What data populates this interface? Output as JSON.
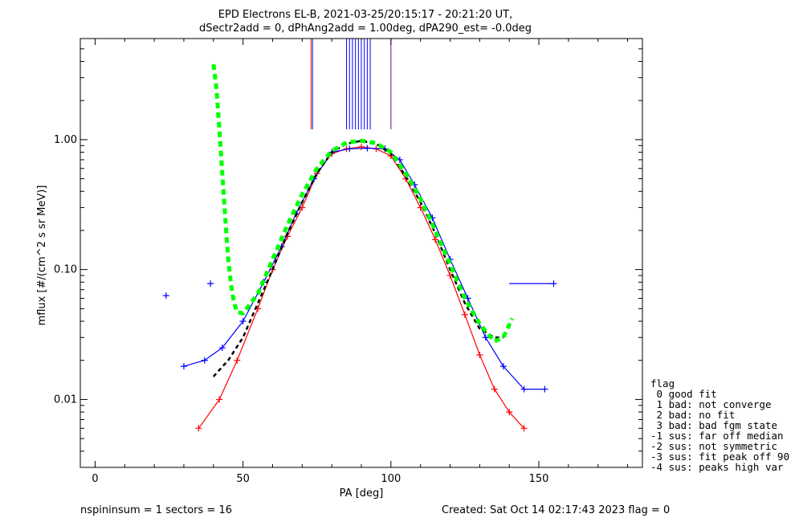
{
  "chart_data": {
    "type": "line",
    "title": "EPD Electrons EL-B, 2021-03-25/20:15:17 - 20:21:20 UT,",
    "subtitle": "dSectr2add = 0, dPhAng2add = 1.00deg, dPA290_est=  -0.0deg",
    "xlabel": "PA [deg]",
    "ylabel": "mflux [#/(cm^2 s sr MeV)]",
    "xlim": [
      -5,
      185
    ],
    "ylim": [
      0.003,
      6
    ],
    "yscale": "log",
    "x_ticks": [
      {
        "value": 0,
        "label": "0"
      },
      {
        "value": 50,
        "label": "50"
      },
      {
        "value": 100,
        "label": "100"
      },
      {
        "value": 150,
        "label": "150"
      }
    ],
    "y_ticks": [
      {
        "value": 0.01,
        "label": "0.01"
      },
      {
        "value": 0.1,
        "label": "0.10"
      },
      {
        "value": 1,
        "label": "1.00"
      }
    ],
    "series": [
      {
        "color": "#ff0000",
        "x": [
          35,
          42,
          48,
          55,
          60,
          65,
          70,
          75,
          80,
          85,
          90,
          95,
          100,
          105,
          110,
          115,
          120,
          125,
          130,
          135,
          140,
          145
        ],
        "values": [
          0.006,
          0.01,
          0.02,
          0.05,
          0.1,
          0.18,
          0.3,
          0.55,
          0.78,
          0.85,
          0.88,
          0.85,
          0.75,
          0.5,
          0.3,
          0.17,
          0.09,
          0.045,
          0.022,
          0.012,
          0.008,
          0.006
        ]
      },
      {
        "color": "#0000ff",
        "x": [
          30,
          37,
          43,
          50,
          57,
          63,
          68,
          74,
          80,
          86,
          92,
          98,
          103,
          108,
          114,
          120,
          126,
          132,
          138,
          145,
          152
        ],
        "values": [
          0.018,
          0.02,
          0.025,
          0.04,
          0.08,
          0.15,
          0.27,
          0.5,
          0.8,
          0.85,
          0.86,
          0.85,
          0.7,
          0.45,
          0.25,
          0.12,
          0.06,
          0.03,
          0.018,
          0.012,
          0.012
        ]
      },
      {
        "color": "#000000",
        "x": [
          40,
          45,
          50,
          55,
          60,
          65,
          70,
          75,
          80,
          85,
          90,
          95,
          100,
          105,
          110,
          115,
          120,
          125,
          130,
          135,
          138
        ],
        "values": [
          0.015,
          0.02,
          0.03,
          0.055,
          0.1,
          0.19,
          0.33,
          0.55,
          0.8,
          0.93,
          0.98,
          0.93,
          0.78,
          0.52,
          0.33,
          0.19,
          0.1,
          0.055,
          0.035,
          0.03,
          0.03
        ]
      },
      {
        "color": "#00ff00",
        "x": [
          40,
          41,
          42,
          43,
          44,
          45,
          46,
          47,
          48,
          50,
          55,
          60,
          65,
          70,
          75,
          80,
          85,
          90,
          95,
          100,
          105,
          110,
          115,
          120,
          125,
          130,
          135,
          138,
          141
        ],
        "values": [
          3.8,
          2.5,
          1.2,
          0.55,
          0.25,
          0.12,
          0.075,
          0.055,
          0.047,
          0.046,
          0.065,
          0.12,
          0.22,
          0.38,
          0.6,
          0.82,
          0.95,
          0.98,
          0.94,
          0.8,
          0.55,
          0.35,
          0.2,
          0.11,
          0.06,
          0.038,
          0.028,
          0.03,
          0.042
        ]
      }
    ],
    "outliers": [
      {
        "x": 24,
        "y": 0.063,
        "color": "#0000ff"
      },
      {
        "x": 39,
        "y": 0.078,
        "color": "#0000ff"
      },
      {
        "x": 155,
        "y": 0.078,
        "color": "#0000ff"
      }
    ],
    "vertical_lines": [
      {
        "x": 73,
        "color": "#ff0000"
      },
      {
        "x": 73.5,
        "color": "#0000ff"
      },
      {
        "x": 85,
        "color": "#0000ff"
      },
      {
        "x": 86,
        "color": "#0000ff"
      },
      {
        "x": 87,
        "color": "#0000ff"
      },
      {
        "x": 88,
        "color": "#0000ff"
      },
      {
        "x": 89,
        "color": "#0000ff"
      },
      {
        "x": 90,
        "color": "#0000ff"
      },
      {
        "x": 91,
        "color": "#0000ff"
      },
      {
        "x": 92,
        "color": "#0000ff"
      },
      {
        "x": 93,
        "color": "#0000ff"
      },
      {
        "x": 100,
        "color": "#800080"
      }
    ],
    "legend": {
      "placement": "right",
      "entries": [
        "flag",
        " 0 good fit",
        " 1 bad: not converge",
        " 2 bad: no fit",
        " 3 bad: bad fgm state",
        "-1 sus: far off median",
        "-2 sus: not symmetric",
        "-3 sus: fit peak off 90",
        "-4 sus: peaks high var"
      ]
    }
  },
  "footer": {
    "left": "nspininsum =  1  sectors = 16",
    "right": "Created: Sat Oct 14 02:17:43 2023   flag = 0"
  }
}
